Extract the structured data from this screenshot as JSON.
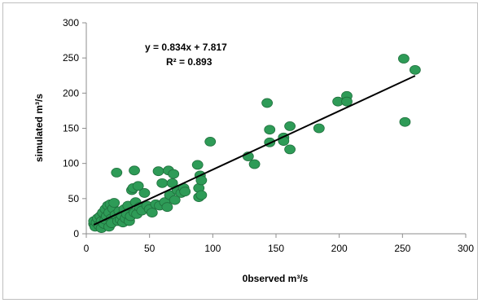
{
  "chart_data": {
    "type": "scatter",
    "title": "",
    "xlabel": "0bserved m³/s",
    "ylabel": "simulated m³/s",
    "xlim": [
      0,
      300
    ],
    "ylim": [
      0,
      300
    ],
    "xticks": [
      0,
      50,
      100,
      150,
      200,
      250,
      300
    ],
    "yticks": [
      0,
      50,
      100,
      150,
      200,
      250,
      300
    ],
    "grid": false,
    "legend": "none",
    "marker_color": "#2e9b57",
    "marker_edge_color": "#1f6e3c",
    "trendline": {
      "slope": 0.834,
      "intercept": 7.817,
      "x_range": [
        6,
        260
      ],
      "color": "#000000",
      "equation_label": "y = 0.834x + 7.817",
      "r2_label": "R² = 0.893"
    },
    "points": [
      {
        "x": 6,
        "y": 14
      },
      {
        "x": 6,
        "y": 18
      },
      {
        "x": 7,
        "y": 10
      },
      {
        "x": 8,
        "y": 16
      },
      {
        "x": 9,
        "y": 22
      },
      {
        "x": 10,
        "y": 12
      },
      {
        "x": 11,
        "y": 25
      },
      {
        "x": 12,
        "y": 18
      },
      {
        "x": 12,
        "y": 8
      },
      {
        "x": 13,
        "y": 30
      },
      {
        "x": 14,
        "y": 14
      },
      {
        "x": 15,
        "y": 20
      },
      {
        "x": 15,
        "y": 35
      },
      {
        "x": 16,
        "y": 25
      },
      {
        "x": 17,
        "y": 40
      },
      {
        "x": 18,
        "y": 10
      },
      {
        "x": 18,
        "y": 30
      },
      {
        "x": 19,
        "y": 42
      },
      {
        "x": 20,
        "y": 22
      },
      {
        "x": 20,
        "y": 15
      },
      {
        "x": 21,
        "y": 36
      },
      {
        "x": 22,
        "y": 44
      },
      {
        "x": 23,
        "y": 27
      },
      {
        "x": 24,
        "y": 87
      },
      {
        "x": 25,
        "y": 18
      },
      {
        "x": 26,
        "y": 32
      },
      {
        "x": 27,
        "y": 20
      },
      {
        "x": 28,
        "y": 26
      },
      {
        "x": 29,
        "y": 16
      },
      {
        "x": 30,
        "y": 35
      },
      {
        "x": 31,
        "y": 22
      },
      {
        "x": 32,
        "y": 28
      },
      {
        "x": 33,
        "y": 40
      },
      {
        "x": 34,
        "y": 18
      },
      {
        "x": 35,
        "y": 25
      },
      {
        "x": 36,
        "y": 62
      },
      {
        "x": 37,
        "y": 65
      },
      {
        "x": 38,
        "y": 90
      },
      {
        "x": 38,
        "y": 30
      },
      {
        "x": 39,
        "y": 45
      },
      {
        "x": 40,
        "y": 28
      },
      {
        "x": 41,
        "y": 68
      },
      {
        "x": 42,
        "y": 38
      },
      {
        "x": 44,
        "y": 33
      },
      {
        "x": 46,
        "y": 58
      },
      {
        "x": 48,
        "y": 40
      },
      {
        "x": 50,
        "y": 35
      },
      {
        "x": 52,
        "y": 30
      },
      {
        "x": 55,
        "y": 42
      },
      {
        "x": 57,
        "y": 89
      },
      {
        "x": 58,
        "y": 40
      },
      {
        "x": 60,
        "y": 72
      },
      {
        "x": 62,
        "y": 45
      },
      {
        "x": 64,
        "y": 38
      },
      {
        "x": 65,
        "y": 90
      },
      {
        "x": 66,
        "y": 55
      },
      {
        "x": 68,
        "y": 72
      },
      {
        "x": 69,
        "y": 85
      },
      {
        "x": 70,
        "y": 48
      },
      {
        "x": 72,
        "y": 62
      },
      {
        "x": 75,
        "y": 58
      },
      {
        "x": 77,
        "y": 65
      },
      {
        "x": 78,
        "y": 60
      },
      {
        "x": 88,
        "y": 98
      },
      {
        "x": 89,
        "y": 65
      },
      {
        "x": 89,
        "y": 52
      },
      {
        "x": 90,
        "y": 83
      },
      {
        "x": 91,
        "y": 55
      },
      {
        "x": 91,
        "y": 76
      },
      {
        "x": 98,
        "y": 131
      },
      {
        "x": 128,
        "y": 110
      },
      {
        "x": 133,
        "y": 99
      },
      {
        "x": 143,
        "y": 186
      },
      {
        "x": 145,
        "y": 148
      },
      {
        "x": 145,
        "y": 130
      },
      {
        "x": 156,
        "y": 137
      },
      {
        "x": 156,
        "y": 132
      },
      {
        "x": 161,
        "y": 153
      },
      {
        "x": 161,
        "y": 120
      },
      {
        "x": 184,
        "y": 150
      },
      {
        "x": 199,
        "y": 188
      },
      {
        "x": 206,
        "y": 196
      },
      {
        "x": 206,
        "y": 188
      },
      {
        "x": 251,
        "y": 249
      },
      {
        "x": 252,
        "y": 159
      },
      {
        "x": 260,
        "y": 233
      }
    ]
  }
}
